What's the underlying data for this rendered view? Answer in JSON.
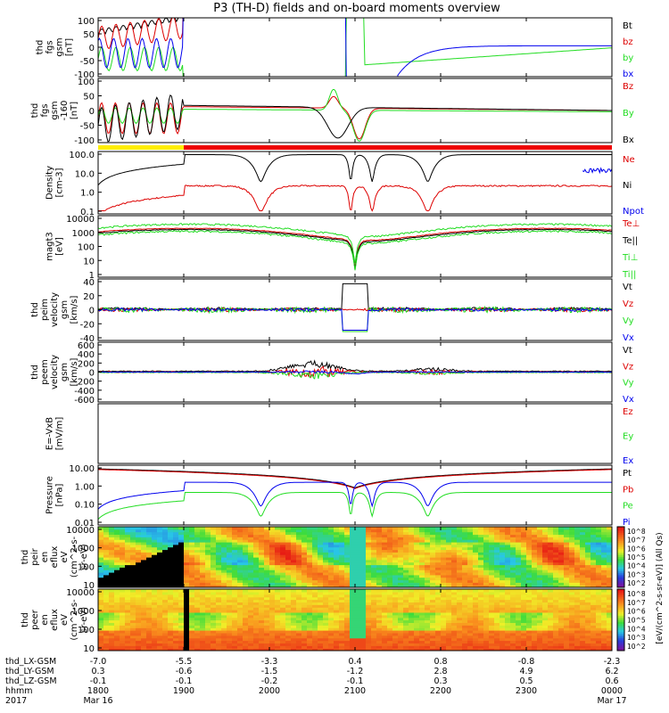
{
  "title": "P3 (TH-D) fields and on-board moments overview",
  "colors": {
    "black": "#000000",
    "red": "#dd0000",
    "green": "#22dd22",
    "blue": "#0000ee",
    "yellow": "#ffee00",
    "bar_red": "#ee0000"
  },
  "chart_data": [
    {
      "type": "line",
      "id": "fgs",
      "ylabel": [
        "thd",
        "fgs",
        "gsm",
        "[nT]"
      ],
      "ytick_labels": [
        "100",
        "50",
        "0",
        "-50",
        "-100"
      ],
      "ylim": [
        -100,
        100
      ],
      "series": [
        {
          "name": "Bt",
          "color": "black"
        },
        {
          "name": "bz",
          "color": "red"
        },
        {
          "name": "by",
          "color": "green"
        },
        {
          "name": "bx",
          "color": "blue"
        }
      ]
    },
    {
      "type": "line",
      "id": "fgs-zoom",
      "ylabel": [
        "thd",
        "fgs",
        "gsm",
        "-160",
        "[nT]"
      ],
      "ytick_labels": [
        "100",
        "50",
        "0",
        "-50",
        "-100"
      ],
      "ylim": [
        -125,
        125
      ],
      "series": [
        {
          "name": "Bz",
          "color": "red"
        },
        {
          "name": "By",
          "color": "green"
        },
        {
          "name": "Bx",
          "color": "black"
        }
      ],
      "status_bar": {
        "yellow_until_hour": 19.0
      }
    },
    {
      "type": "line",
      "id": "density",
      "ylabel": [
        "Density",
        "[cm-3]"
      ],
      "ytick_labels": [
        "100.0",
        "10.0",
        "1.0",
        "0.1"
      ],
      "ylim": [
        0.1,
        300
      ],
      "yscale": "log",
      "series": [
        {
          "name": "Ne",
          "color": "red"
        },
        {
          "name": "Ni",
          "color": "black"
        },
        {
          "name": "Npot",
          "color": "blue"
        }
      ]
    },
    {
      "type": "line",
      "id": "temperature",
      "ylabel": [
        "magt3",
        "[eV]"
      ],
      "ytick_labels": [
        "10000",
        "1000",
        "100",
        "10",
        "1"
      ],
      "ylim": [
        1,
        10000
      ],
      "yscale": "log",
      "series": [
        {
          "name": "Te⊥",
          "color": "red"
        },
        {
          "name": "Te||",
          "color": "black"
        },
        {
          "name": "Ti⊥",
          "color": "green"
        },
        {
          "name": "Ti||",
          "color": "green"
        }
      ]
    },
    {
      "type": "line",
      "id": "ion-velocity",
      "ylabel": [
        "thd",
        "peim",
        "velocity",
        "gsm",
        "[km/s]"
      ],
      "ytick_labels": [
        "40",
        "20",
        "0",
        "-20",
        "-40"
      ],
      "ylim": [
        -45,
        45
      ],
      "series": [
        {
          "name": "Vt",
          "color": "black"
        },
        {
          "name": "Vz",
          "color": "red"
        },
        {
          "name": "Vy",
          "color": "green"
        },
        {
          "name": "Vx",
          "color": "blue"
        }
      ]
    },
    {
      "type": "line",
      "id": "electron-velocity",
      "ylabel": [
        "thd",
        "peem",
        "velocity",
        "gsm",
        "[km/s]"
      ],
      "ytick_labels": [
        "600",
        "400",
        "200",
        "0",
        "-200",
        "-400",
        "-600"
      ],
      "ylim": [
        -650,
        650
      ],
      "series": [
        {
          "name": "Vt",
          "color": "black"
        },
        {
          "name": "Vz",
          "color": "red"
        },
        {
          "name": "Vy",
          "color": "green"
        },
        {
          "name": "Vx",
          "color": "blue"
        }
      ]
    },
    {
      "type": "line",
      "id": "efield",
      "ylabel": [
        "E=-VxB",
        "[mV/m]"
      ],
      "ytick_labels": [],
      "series": [
        {
          "name": "Ez",
          "color": "red"
        },
        {
          "name": "Ey",
          "color": "green"
        },
        {
          "name": "Ex",
          "color": "blue"
        }
      ]
    },
    {
      "type": "line",
      "id": "pressure",
      "ylabel": [
        "Pressure",
        "[nPa]"
      ],
      "ytick_labels": [
        "10.00",
        "1.00",
        "0.10",
        "0.01"
      ],
      "ylim": [
        0.005,
        30
      ],
      "yscale": "log",
      "series": [
        {
          "name": "Pt",
          "color": "black"
        },
        {
          "name": "Pb",
          "color": "red"
        },
        {
          "name": "Pe",
          "color": "green"
        },
        {
          "name": "Pi",
          "color": "blue"
        }
      ]
    },
    {
      "type": "heatmap",
      "id": "ion-spectrogram",
      "ylabel": [
        "thd",
        "peir",
        "en",
        "eflux",
        "eV",
        "(cm^2-s-",
        "sr-eV)"
      ],
      "ytick_labels": [
        "10000",
        "1000",
        "100",
        "10"
      ],
      "ylim": [
        5,
        25000
      ],
      "yscale": "log"
    },
    {
      "type": "heatmap",
      "id": "electron-spectrogram",
      "ylabel": [
        "thd",
        "peer",
        "en",
        "eflux",
        "eV",
        "(cm^2-s-",
        "sr-eV)"
      ],
      "ytick_labels": [
        "10000",
        "1000",
        "100",
        "10"
      ],
      "ylim": [
        5,
        25000
      ],
      "yscale": "log"
    }
  ],
  "colorbar": {
    "tick_labels": [
      "10^8",
      "10^7",
      "10^6",
      "10^5",
      "10^4",
      "10^3",
      "10^2"
    ],
    "label": "[eV/(cm^2-s-sr-eV)] (All Qs)"
  },
  "x_axis": {
    "row_labels": [
      "thd_LX-GSM",
      "thd_LY-GSM",
      "thd_LZ-GSM",
      "hhmm",
      "2017"
    ],
    "columns": [
      {
        "values": [
          "-7.0",
          "0.3",
          "-0.1",
          "1800",
          "Mar 16"
        ]
      },
      {
        "values": [
          "-5.5",
          "-0.6",
          "-0.1",
          "1900",
          ""
        ]
      },
      {
        "values": [
          "-3.3",
          "-1.5",
          "-0.2",
          "2000",
          ""
        ]
      },
      {
        "values": [
          "0.4",
          "-1.2",
          "-0.1",
          "2100",
          ""
        ]
      },
      {
        "values": [
          "0.8",
          "2.8",
          "0.3",
          "2200",
          ""
        ]
      },
      {
        "values": [
          "-0.8",
          "4.9",
          "0.5",
          "2300",
          ""
        ]
      },
      {
        "values": [
          "-2.3",
          "6.2",
          "0.6",
          "0000",
          "Mar 17"
        ]
      }
    ]
  }
}
